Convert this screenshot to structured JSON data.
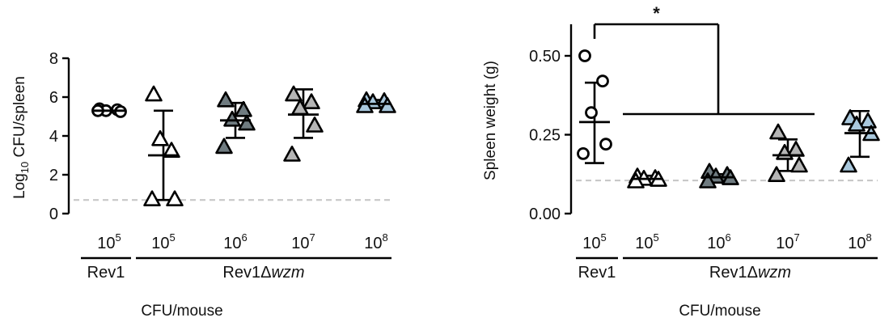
{
  "colors": {
    "axis": "#000000",
    "reference_line": "#c8c8c8",
    "rev1_marker": "#ffffff",
    "dose_1e5": "#ffffff",
    "dose_1e6": "#6f7b80",
    "dose_1e7": "#b5b5b5",
    "dose_1e8": "#a9c8dd"
  },
  "x_axis_title": "CFU/mouse",
  "strain_labels": {
    "parent": "Rev1",
    "mutant_prefix": "Rev1Δ",
    "mutant_italic": "wzm"
  },
  "chart_data": [
    {
      "type": "scatter",
      "panel": "left",
      "ylabel_main": "Log",
      "ylabel_sub": "10",
      "ylabel_rest": " CFU/spleen",
      "ylim": [
        0,
        8
      ],
      "yticks": [
        "0",
        "2",
        "4",
        "6",
        "8"
      ],
      "ytick_values": [
        0,
        2,
        4,
        6,
        8
      ],
      "detection_limit": 0.7,
      "categories": [
        {
          "base": "10",
          "exp": "5",
          "strain": "Rev1",
          "marker": "circle",
          "fill": "#ffffff",
          "mean": 5.3,
          "sd_low": 5.3,
          "sd_high": 5.3,
          "points": [
            5.4,
            5.35,
            5.3,
            5.25,
            5.3
          ]
        },
        {
          "base": "10",
          "exp": "5",
          "strain": "Rev1Δwzm",
          "marker": "triangle",
          "fill": "#ffffff",
          "mean": 3.0,
          "sd_low": 0.7,
          "sd_high": 5.3,
          "points": [
            6.1,
            3.2,
            3.8,
            0.7,
            0.7
          ]
        },
        {
          "base": "10",
          "exp": "6",
          "strain": "Rev1Δwzm",
          "marker": "triangle",
          "fill": "#6f7b80",
          "mean": 4.8,
          "sd_low": 3.9,
          "sd_high": 5.7,
          "points": [
            5.8,
            5.3,
            4.8,
            4.6,
            3.4
          ]
        },
        {
          "base": "10",
          "exp": "7",
          "strain": "Rev1Δwzm",
          "marker": "triangle",
          "fill": "#b5b5b5",
          "mean": 5.1,
          "sd_low": 3.9,
          "sd_high": 6.4,
          "points": [
            6.1,
            5.7,
            5.4,
            4.5,
            3.0
          ]
        },
        {
          "base": "10",
          "exp": "8",
          "strain": "Rev1Δwzm",
          "marker": "triangle",
          "fill": "#a9c8dd",
          "mean": 5.65,
          "sd_low": 5.45,
          "sd_high": 5.85,
          "points": [
            5.8,
            5.75,
            5.7,
            5.5,
            5.5
          ]
        }
      ]
    },
    {
      "type": "scatter",
      "panel": "right",
      "ylabel": "Spleen weight (g)",
      "ylim": [
        0,
        0.6
      ],
      "yticks": [
        "0.00",
        "0.25",
        "0.50"
      ],
      "ytick_values": [
        0,
        0.25,
        0.5
      ],
      "reference_line": 0.105,
      "significance": "*",
      "categories": [
        {
          "base": "10",
          "exp": "5",
          "strain": "Rev1",
          "marker": "circle",
          "fill": "#ffffff",
          "mean": 0.29,
          "sd_low": 0.16,
          "sd_high": 0.415,
          "points": [
            0.5,
            0.42,
            0.32,
            0.22,
            0.19
          ]
        },
        {
          "base": "10",
          "exp": "5",
          "strain": "Rev1Δwzm",
          "marker": "triangle",
          "fill": "#ffffff",
          "mean": 0.11,
          "sd_low": 0.1,
          "sd_high": 0.12,
          "points": [
            0.115,
            0.11,
            0.108,
            0.105,
            0.1
          ]
        },
        {
          "base": "10",
          "exp": "6",
          "strain": "Rev1Δwzm",
          "marker": "triangle",
          "fill": "#6f7b80",
          "mean": 0.115,
          "sd_low": 0.1,
          "sd_high": 0.125,
          "points": [
            0.13,
            0.12,
            0.115,
            0.11,
            0.1
          ]
        },
        {
          "base": "10",
          "exp": "7",
          "strain": "Rev1Δwzm",
          "marker": "triangle",
          "fill": "#b5b5b5",
          "mean": 0.185,
          "sd_low": 0.135,
          "sd_high": 0.235,
          "points": [
            0.255,
            0.2,
            0.19,
            0.15,
            0.12
          ]
        },
        {
          "base": "10",
          "exp": "8",
          "strain": "Rev1Δwzm",
          "marker": "triangle",
          "fill": "#a9c8dd",
          "mean": 0.255,
          "sd_low": 0.18,
          "sd_high": 0.325,
          "points": [
            0.3,
            0.29,
            0.28,
            0.25,
            0.15
          ]
        }
      ]
    }
  ]
}
